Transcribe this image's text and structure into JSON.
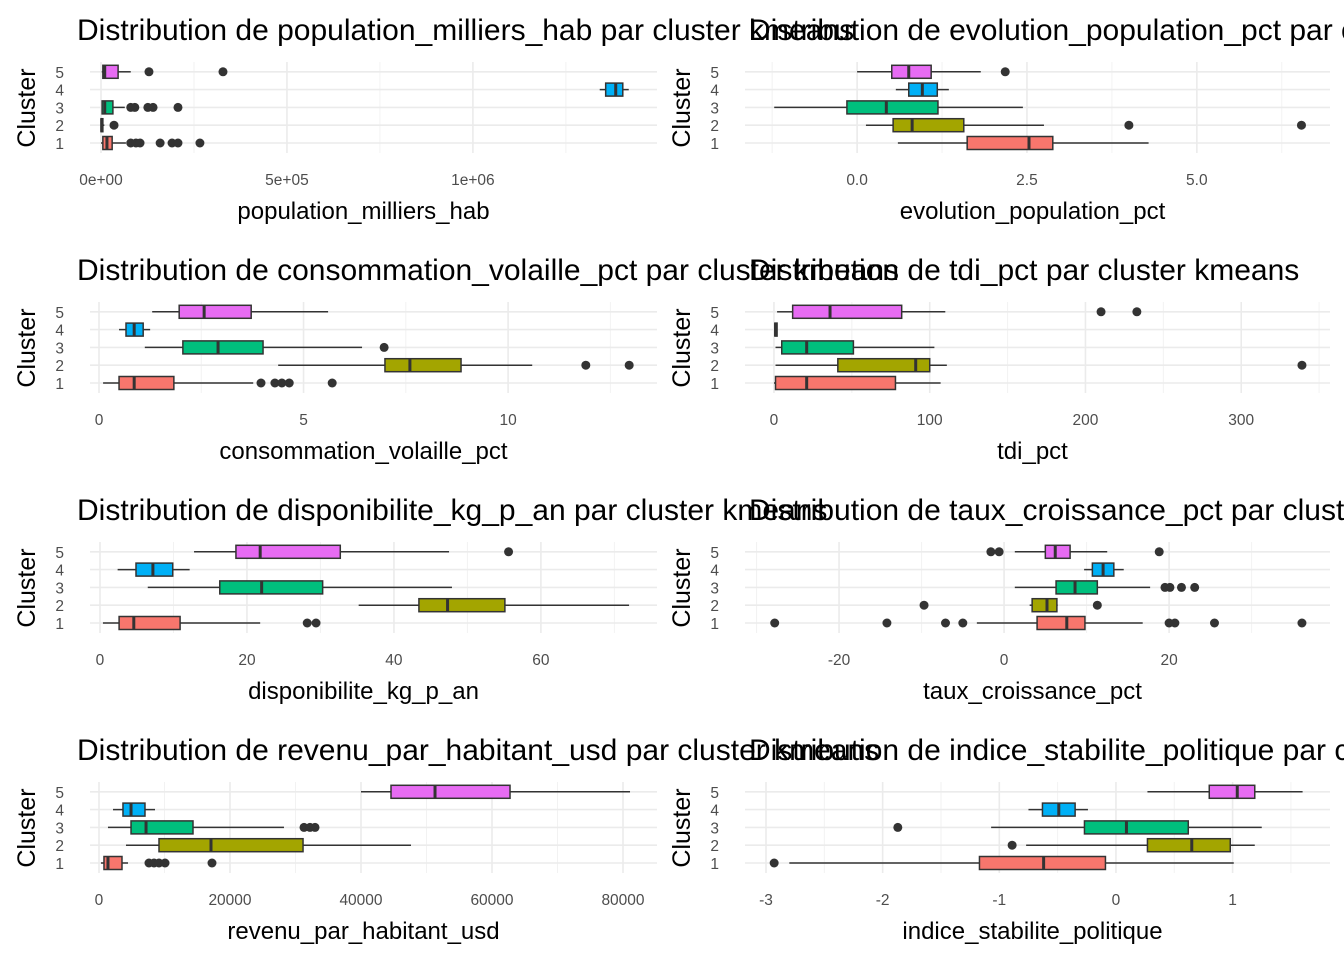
{
  "chart_data": {
    "type": "boxplot",
    "layout": "4 rows x 2 columns",
    "ylabel": "Cluster",
    "clusters": [
      "1",
      "2",
      "3",
      "4",
      "5"
    ],
    "cluster_colors": {
      "1": "#F8766D",
      "2": "#A3A500",
      "3": "#00BF7D",
      "4": "#00B0F6",
      "5": "#E76BF3"
    },
    "panels": [
      {
        "title": "Distribution de population_milliers_hab par cluster kmeans",
        "xlabel": "population_milliers_hab",
        "xlim": [
          -29570,
          1495000
        ],
        "ticks": [
          0,
          500000,
          1000000
        ],
        "tick_labels": [
          "0e+00",
          "5e+05",
          "1e+06"
        ],
        "boxes": {
          "1": {
            "whisker_low": 0,
            "q1": 5000,
            "median": 16000,
            "q3": 30000,
            "whisker_high": 67000,
            "outliers": [
              80000,
              94000,
              105000,
              159000,
              191000,
              207000,
              266000
            ]
          },
          "2": {
            "whisker_low": 0,
            "q1": 200,
            "median": 2000,
            "q3": 5000,
            "whisker_high": 9000,
            "outliers": [
              35000
            ]
          },
          "3": {
            "whisker_low": 2000,
            "q1": 3000,
            "median": 10000,
            "q3": 32000,
            "whisker_high": 64000,
            "outliers": [
              80000,
              91000,
              126000,
              140000,
              207000
            ]
          },
          "4": {
            "whisker_low": 1341000,
            "q1": 1357000,
            "median": 1384000,
            "q3": 1403000,
            "whisker_high": 1419000,
            "outliers": []
          },
          "5": {
            "whisker_low": 2000,
            "q1": 5000,
            "median": 10000,
            "q3": 46000,
            "whisker_high": 80000,
            "outliers": [
              129000,
              328000
            ]
          }
        }
      },
      {
        "title": "Distribution de evolution_population_pct par cluster kmeans",
        "xlabel": "evolution_population_pct",
        "xlim": [
          -1.65,
          6.96
        ],
        "ticks": [
          0,
          2.5,
          5
        ],
        "tick_labels": [
          "0.0",
          "2.5",
          "5.0"
        ],
        "boxes": {
          "1": {
            "whisker_low": 0.6,
            "q1": 1.62,
            "median": 2.53,
            "q3": 2.88,
            "whisker_high": 4.29,
            "outliers": []
          },
          "2": {
            "whisker_low": 0.13,
            "q1": 0.53,
            "median": 0.81,
            "q3": 1.57,
            "whisker_high": 2.75,
            "outliers": [
              4.0,
              6.54
            ]
          },
          "3": {
            "whisker_low": -1.22,
            "q1": -0.15,
            "median": 0.43,
            "q3": 1.19,
            "whisker_high": 2.44,
            "outliers": []
          },
          "4": {
            "whisker_low": 0.57,
            "q1": 0.76,
            "median": 0.96,
            "q3": 1.18,
            "whisker_high": 1.35,
            "outliers": []
          },
          "5": {
            "whisker_low": 0.0,
            "q1": 0.51,
            "median": 0.76,
            "q3": 1.09,
            "whisker_high": 1.82,
            "outliers": [
              2.18
            ]
          }
        }
      },
      {
        "title": "Distribution de consommation_volaille_pct par cluster kmeans",
        "xlabel": "consommation_volaille_pct",
        "xlim": [
          -0.22,
          13.64
        ],
        "ticks": [
          0,
          5,
          10
        ],
        "tick_labels": [
          "0",
          "5",
          "10"
        ],
        "boxes": {
          "1": {
            "whisker_low": 0.1,
            "q1": 0.49,
            "median": 0.86,
            "q3": 1.83,
            "whisker_high": 3.77,
            "outliers": [
              3.96,
              4.3,
              4.47,
              4.65,
              5.7
            ]
          },
          "2": {
            "whisker_low": 4.38,
            "q1": 6.99,
            "median": 7.6,
            "q3": 8.85,
            "whisker_high": 10.59,
            "outliers": [
              11.9,
              12.96
            ]
          },
          "3": {
            "whisker_low": 1.12,
            "q1": 2.05,
            "median": 2.91,
            "q3": 4.01,
            "whisker_high": 6.43,
            "outliers": [
              6.97
            ]
          },
          "4": {
            "whisker_low": 0.49,
            "q1": 0.66,
            "median": 0.86,
            "q3": 1.08,
            "whisker_high": 1.25,
            "outliers": []
          },
          "5": {
            "whisker_low": 1.3,
            "q1": 1.96,
            "median": 2.57,
            "q3": 3.72,
            "whisker_high": 5.6,
            "outliers": []
          }
        }
      },
      {
        "title": "Distribution de tdi_pct par cluster kmeans",
        "xlabel": "tdi_pct",
        "xlim": [
          -18.6,
          357
        ],
        "ticks": [
          0,
          100,
          200,
          300
        ],
        "tick_labels": [
          "0",
          "100",
          "200",
          "300"
        ],
        "boxes": {
          "1": {
            "whisker_low": 0,
            "q1": 1,
            "median": 21,
            "q3": 78,
            "whisker_high": 107,
            "outliers": []
          },
          "2": {
            "whisker_low": 1,
            "q1": 41,
            "median": 91,
            "q3": 100,
            "whisker_high": 111,
            "outliers": [
              339
            ]
          },
          "3": {
            "whisker_low": 1,
            "q1": 5,
            "median": 21,
            "q3": 51,
            "whisker_high": 103,
            "outliers": []
          },
          "4": {
            "whisker_low": 0.5,
            "q1": 0.6,
            "median": 1,
            "q3": 2,
            "whisker_high": 2.2,
            "outliers": []
          },
          "5": {
            "whisker_low": 2,
            "q1": 12,
            "median": 36,
            "q3": 82,
            "whisker_high": 110,
            "outliers": [
              210,
              233
            ]
          }
        }
      },
      {
        "title": "Distribution de disponibilite_kg_p_an par cluster kmeans",
        "xlabel": "disponibilite_kg_p_an",
        "xlim": [
          -1.36,
          75.8
        ],
        "ticks": [
          0,
          20,
          40,
          60
        ],
        "tick_labels": [
          "0",
          "20",
          "40",
          "60"
        ],
        "boxes": {
          "1": {
            "whisker_low": 0.4,
            "q1": 2.6,
            "median": 4.6,
            "q3": 10.9,
            "whisker_high": 21.8,
            "outliers": [
              28.2,
              29.4
            ]
          },
          "2": {
            "whisker_low": 35.2,
            "q1": 43.4,
            "median": 47.3,
            "q3": 55.1,
            "whisker_high": 72,
            "outliers": []
          },
          "3": {
            "whisker_low": 6.5,
            "q1": 16.3,
            "median": 22,
            "q3": 30.3,
            "whisker_high": 47.9,
            "outliers": []
          },
          "4": {
            "whisker_low": 2.4,
            "q1": 4.9,
            "median": 7.2,
            "q3": 9.9,
            "whisker_high": 12.2,
            "outliers": []
          },
          "5": {
            "whisker_low": 12.8,
            "q1": 18.5,
            "median": 21.8,
            "q3": 32.7,
            "whisker_high": 47.5,
            "outliers": [
              55.6
            ]
          }
        }
      },
      {
        "title": "Distribution de taux_croissance_pct par cluster kmeans",
        "xlabel": "taux_croissance_pct",
        "xlim": [
          -31.4,
          39.5
        ],
        "ticks": [
          -20,
          0,
          20
        ],
        "tick_labels": [
          "-20",
          "0",
          "20"
        ],
        "boxes": {
          "1": {
            "whisker_low": -3.3,
            "q1": 4,
            "median": 7.6,
            "q3": 9.8,
            "whisker_high": 16.8,
            "outliers": [
              -27.8,
              -14.2,
              -7.1,
              -5,
              20,
              20.7,
              25.5,
              36.1
            ]
          },
          "2": {
            "whisker_low": 3.1,
            "q1": 3.4,
            "median": 5.2,
            "q3": 6.4,
            "whisker_high": 6.5,
            "outliers": [
              -9.7,
              11.3
            ]
          },
          "3": {
            "whisker_low": 1.3,
            "q1": 6.3,
            "median": 8.6,
            "q3": 11.3,
            "whisker_high": 17.7,
            "outliers": [
              19.5,
              20.1,
              21.5,
              23.1
            ]
          },
          "4": {
            "whisker_low": 9.7,
            "q1": 10.7,
            "median": 12,
            "q3": 13.3,
            "whisker_high": 14.5,
            "outliers": []
          },
          "5": {
            "whisker_low": 1.3,
            "q1": 5,
            "median": 6.2,
            "q3": 8,
            "whisker_high": 12.5,
            "outliers": [
              -1.6,
              -0.6,
              18.8
            ]
          }
        }
      },
      {
        "title": "Distribution de revenu_par_habitant_usd par cluster kmeans",
        "xlabel": "revenu_par_habitant_usd",
        "xlim": [
          -1374,
          85190
        ],
        "ticks": [
          0,
          20000,
          40000,
          60000,
          80000
        ],
        "tick_labels": [
          "0",
          "20000",
          "40000",
          "60000",
          "80000"
        ],
        "boxes": {
          "1": {
            "whisker_low": 300,
            "q1": 760,
            "median": 1370,
            "q3": 3510,
            "whisker_high": 4430,
            "outliers": [
              7630,
              8400,
              9160,
              10080,
              17250
            ]
          },
          "2": {
            "whisker_low": 4120,
            "q1": 9160,
            "median": 17100,
            "q3": 31150,
            "whisker_high": 47630,
            "outliers": []
          },
          "3": {
            "whisker_low": 1370,
            "q1": 4890,
            "median": 7180,
            "q3": 14350,
            "whisker_high": 28240,
            "outliers": [
              31300,
              32210,
              32980
            ]
          },
          "4": {
            "whisker_low": 2140,
            "q1": 3660,
            "median": 4890,
            "q3": 7020,
            "whisker_high": 8550,
            "outliers": []
          },
          "5": {
            "whisker_low": 40000,
            "q1": 44580,
            "median": 51300,
            "q3": 62750,
            "whisker_high": 81070,
            "outliers": []
          }
        }
      },
      {
        "title": "Distribution de indice_stabilite_politique par cluster kmeans",
        "xlabel": "indice_stabilite_politique",
        "xlim": [
          -3.18,
          1.835
        ],
        "ticks": [
          -3,
          -2,
          -1,
          0,
          1
        ],
        "tick_labels": [
          "-3",
          "-2",
          "-1",
          "0",
          "1"
        ],
        "boxes": {
          "1": {
            "whisker_low": -2.8,
            "q1": -1.17,
            "median": -0.62,
            "q3": -0.09,
            "whisker_high": 1.01,
            "outliers": [
              -2.93
            ]
          },
          "2": {
            "whisker_low": -0.77,
            "q1": 0.27,
            "median": 0.65,
            "q3": 0.98,
            "whisker_high": 1.19,
            "outliers": [
              -0.89
            ]
          },
          "3": {
            "whisker_low": -1.07,
            "q1": -0.27,
            "median": 0.09,
            "q3": 0.62,
            "whisker_high": 1.25,
            "outliers": [
              -1.87
            ]
          },
          "4": {
            "whisker_low": -0.75,
            "q1": -0.63,
            "median": -0.49,
            "q3": -0.35,
            "whisker_high": -0.24,
            "outliers": []
          },
          "5": {
            "whisker_low": 0.27,
            "q1": 0.8,
            "median": 1.04,
            "q3": 1.19,
            "whisker_high": 1.6,
            "outliers": []
          }
        }
      }
    ]
  }
}
